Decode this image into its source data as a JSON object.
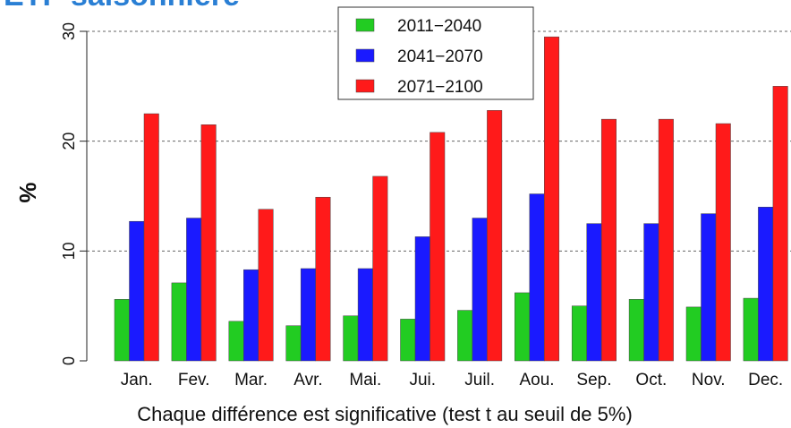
{
  "chart_data": {
    "type": "bar",
    "title": "ETP saisonnière",
    "y_label": "%",
    "x_label": "Chaque différence est significative (test t au seuil de 5%)",
    "categories": [
      "Jan.",
      "Fev.",
      "Mar.",
      "Avr.",
      "Mai.",
      "Jui.",
      "Juil.",
      "Aou.",
      "Sep.",
      "Oct.",
      "Nov.",
      "Dec."
    ],
    "series": [
      {
        "name": "2011−2040",
        "color": "#22cc22",
        "values": [
          5.6,
          7.1,
          3.6,
          3.2,
          4.1,
          3.8,
          4.6,
          6.2,
          5.0,
          5.6,
          4.9,
          5.7
        ]
      },
      {
        "name": "2041−2070",
        "color": "#1a1aff",
        "values": [
          12.7,
          13.0,
          8.3,
          8.4,
          8.4,
          11.3,
          13.0,
          15.2,
          12.5,
          12.5,
          13.4,
          14.0
        ]
      },
      {
        "name": "2071−2100",
        "color": "#ff1a1a",
        "values": [
          22.5,
          21.5,
          13.8,
          14.9,
          16.8,
          20.8,
          22.8,
          29.5,
          22.0,
          22.0,
          21.6,
          25.0
        ]
      }
    ],
    "ylim": [
      0,
      30
    ],
    "yticks": [
      0,
      10,
      20,
      30
    ],
    "grid": true,
    "legend": "top"
  }
}
